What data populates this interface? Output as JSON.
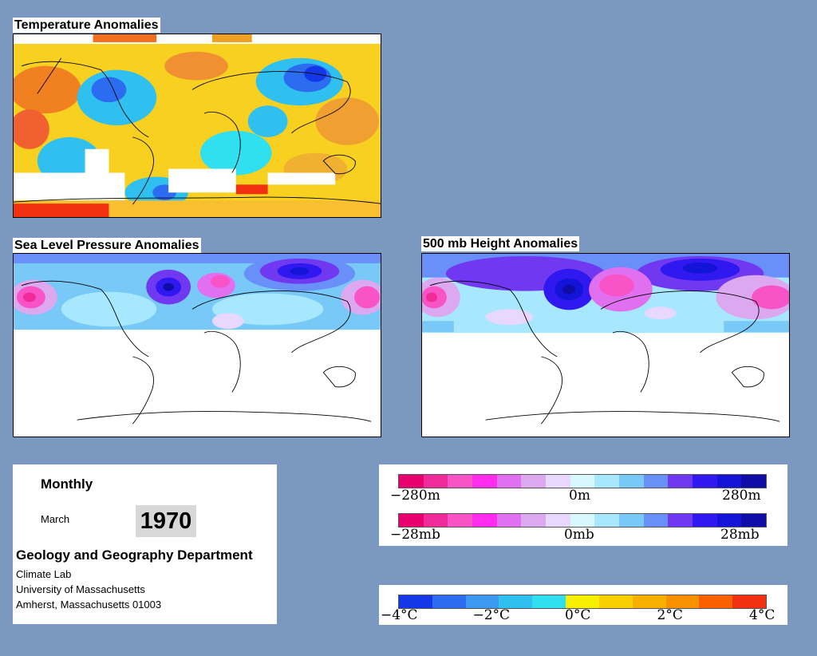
{
  "panels": {
    "temperature": {
      "title": "Temperature Anomalies"
    },
    "slp": {
      "title": "Sea Level Pressure Anomalies"
    },
    "height500": {
      "title": "500 mb Height Anomalies"
    }
  },
  "info": {
    "period": "Monthly",
    "month": "March",
    "year": "1970",
    "department": "Geology and Geography Department",
    "lab": "Climate Lab",
    "university": "University of Massachusetts",
    "address": "Amherst, Massachusetts 01003"
  },
  "legend_height": {
    "min_label": "−280m",
    "mid_label": "0m",
    "max_label": "280m",
    "colors": [
      "#e8006e",
      "#f02a98",
      "#f854c8",
      "#ff2cf0",
      "#e070f0",
      "#dca8f0",
      "#e8d8ff",
      "#d8f8ff",
      "#a8e8ff",
      "#78c8f8",
      "#6890f8",
      "#7038f0",
      "#3018f0",
      "#1414d8",
      "#100ca8"
    ]
  },
  "legend_pressure": {
    "min_label": "−28mb",
    "mid_label": "0mb",
    "max_label": "28mb",
    "colors": [
      "#e8006e",
      "#f02a98",
      "#f854c8",
      "#ff2cf0",
      "#e070f0",
      "#dca8f0",
      "#e8d8ff",
      "#d8f8ff",
      "#a8e8ff",
      "#78c8f8",
      "#6890f8",
      "#7038f0",
      "#3018f0",
      "#1414d8",
      "#100ca8"
    ]
  },
  "legend_temperature": {
    "labels": [
      "−4°C",
      "−2°C",
      "0°C",
      "2°C",
      "4°C"
    ],
    "colors": [
      "#1438e8",
      "#2c6cf0",
      "#3c98f0",
      "#30c0f0",
      "#30e0f0",
      "#f8f000",
      "#f8d000",
      "#f8b000",
      "#f89000",
      "#f86000",
      "#f03010"
    ]
  }
}
